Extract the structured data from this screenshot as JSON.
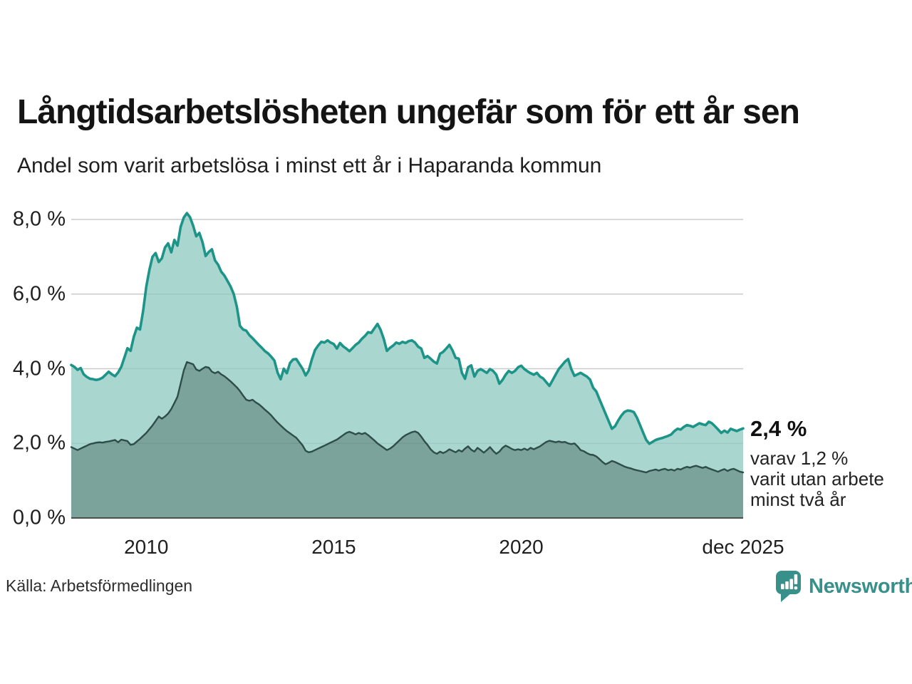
{
  "header": {
    "title": "Långtidsarbetslösheten ungefär som för ett år sen",
    "subtitle": "Andel som varit arbetslösa i minst ett år i Haparanda kommun"
  },
  "annotation": {
    "value_label": "2,4 %",
    "lines": [
      "varav 1,2 %",
      "varit utan arbete",
      "minst två år"
    ]
  },
  "source_label": "Källa: Arbetsförmedlingen",
  "branding": {
    "name": "Newsworthy"
  },
  "colors": {
    "line_total": "#1d9488",
    "fill_total": "#a9d6cf",
    "line_two_years": "#2e4d49",
    "fill_two_years": "#7ba29b",
    "grid": "#d7d7d7",
    "baseline": "#3a3f3e",
    "logo": "#38908a"
  },
  "chart_data": {
    "type": "area",
    "title": "Långtidsarbetslösheten ungefär som för ett år sen",
    "subtitle": "Andel som varit arbetslösa i minst ett år i Haparanda kommun",
    "x_start_year": 2008,
    "x_months_per_step": 1,
    "x_end_label": "dec 2025",
    "ylim": [
      0,
      8
    ],
    "grid": true,
    "legend_position": "none",
    "y_ticks": [
      {
        "value": 8,
        "label": "8,0 %"
      },
      {
        "value": 6,
        "label": "6,0 %"
      },
      {
        "value": 4,
        "label": "4,0 %"
      },
      {
        "value": 2,
        "label": "2,0 %"
      },
      {
        "value": 0,
        "label": "0,0 %"
      }
    ],
    "x_ticks": [
      {
        "year": 2010.0,
        "label": "2010"
      },
      {
        "year": 2015.0,
        "label": "2015"
      },
      {
        "year": 2020.0,
        "label": "2020"
      },
      {
        "year": 2025.917,
        "label": "dec 2025"
      }
    ],
    "series": [
      {
        "name": "arbetslösa minst ett år",
        "end_value": 2.4,
        "values": [
          4.1,
          4.05,
          3.97,
          4.02,
          3.85,
          3.78,
          3.73,
          3.72,
          3.7,
          3.72,
          3.76,
          3.84,
          3.92,
          3.85,
          3.8,
          3.9,
          4.05,
          4.3,
          4.55,
          4.48,
          4.85,
          5.1,
          5.05,
          5.55,
          6.2,
          6.65,
          7.0,
          7.1,
          6.86,
          6.96,
          7.25,
          7.36,
          7.12,
          7.45,
          7.3,
          7.8,
          8.05,
          8.17,
          8.06,
          7.83,
          7.55,
          7.64,
          7.39,
          7.02,
          7.13,
          7.2,
          6.9,
          6.79,
          6.6,
          6.5,
          6.35,
          6.2,
          6.0,
          5.65,
          5.15,
          5.05,
          5.02,
          4.9,
          4.82,
          4.73,
          4.64,
          4.56,
          4.47,
          4.41,
          4.32,
          4.22,
          3.9,
          3.72,
          4.0,
          3.88,
          4.15,
          4.25,
          4.26,
          4.13,
          4.0,
          3.82,
          3.95,
          4.25,
          4.5,
          4.62,
          4.72,
          4.7,
          4.76,
          4.7,
          4.66,
          4.54,
          4.69,
          4.6,
          4.54,
          4.47,
          4.55,
          4.64,
          4.7,
          4.8,
          4.88,
          4.98,
          4.96,
          5.08,
          5.2,
          5.04,
          4.8,
          4.48,
          4.56,
          4.62,
          4.7,
          4.67,
          4.72,
          4.69,
          4.74,
          4.76,
          4.7,
          4.59,
          4.54,
          4.29,
          4.34,
          4.27,
          4.19,
          4.14,
          4.4,
          4.45,
          4.54,
          4.64,
          4.49,
          4.29,
          4.27,
          3.89,
          3.73,
          4.04,
          4.09,
          3.79,
          3.94,
          3.99,
          3.94,
          3.89,
          3.99,
          3.94,
          3.84,
          3.6,
          3.7,
          3.84,
          3.94,
          3.89,
          3.94,
          4.04,
          4.08,
          3.99,
          3.93,
          3.88,
          3.84,
          3.89,
          3.79,
          3.74,
          3.64,
          3.54,
          3.69,
          3.84,
          3.99,
          4.09,
          4.19,
          4.26,
          3.99,
          3.81,
          3.85,
          3.89,
          3.84,
          3.79,
          3.71,
          3.49,
          3.39,
          3.19,
          2.99,
          2.79,
          2.59,
          2.39,
          2.46,
          2.61,
          2.74,
          2.84,
          2.88,
          2.87,
          2.84,
          2.69,
          2.49,
          2.29,
          2.09,
          1.99,
          2.04,
          2.09,
          2.12,
          2.14,
          2.17,
          2.2,
          2.24,
          2.33,
          2.39,
          2.37,
          2.44,
          2.49,
          2.47,
          2.44,
          2.49,
          2.54,
          2.51,
          2.49,
          2.58,
          2.54,
          2.46,
          2.37,
          2.28,
          2.34,
          2.29,
          2.39,
          2.36,
          2.33,
          2.37,
          2.4
        ]
      },
      {
        "name": "utan arbete minst två år",
        "end_value": 1.2,
        "values": [
          1.9,
          1.86,
          1.82,
          1.86,
          1.9,
          1.94,
          1.98,
          2.0,
          2.02,
          2.03,
          2.02,
          2.04,
          2.05,
          2.07,
          2.09,
          2.03,
          2.1,
          2.08,
          2.06,
          1.96,
          1.98,
          2.05,
          2.12,
          2.2,
          2.28,
          2.38,
          2.48,
          2.6,
          2.72,
          2.66,
          2.72,
          2.8,
          2.92,
          3.08,
          3.25,
          3.6,
          3.95,
          4.18,
          4.15,
          4.12,
          3.98,
          3.94,
          4.0,
          4.05,
          4.03,
          3.92,
          3.88,
          3.92,
          3.85,
          3.8,
          3.73,
          3.66,
          3.58,
          3.5,
          3.4,
          3.28,
          3.17,
          3.14,
          3.17,
          3.1,
          3.05,
          2.98,
          2.9,
          2.83,
          2.75,
          2.65,
          2.56,
          2.48,
          2.4,
          2.33,
          2.27,
          2.21,
          2.15,
          2.05,
          1.95,
          1.8,
          1.76,
          1.78,
          1.82,
          1.86,
          1.9,
          1.94,
          1.98,
          2.02,
          2.06,
          2.1,
          2.16,
          2.22,
          2.28,
          2.31,
          2.28,
          2.24,
          2.28,
          2.25,
          2.28,
          2.22,
          2.15,
          2.08,
          2.0,
          1.94,
          1.88,
          1.82,
          1.86,
          1.92,
          2.0,
          2.08,
          2.16,
          2.22,
          2.26,
          2.3,
          2.32,
          2.28,
          2.18,
          2.06,
          1.96,
          1.84,
          1.76,
          1.72,
          1.78,
          1.74,
          1.78,
          1.84,
          1.8,
          1.76,
          1.82,
          1.78,
          1.86,
          1.92,
          1.83,
          1.78,
          1.88,
          1.82,
          1.75,
          1.82,
          1.9,
          1.8,
          1.72,
          1.78,
          1.88,
          1.94,
          1.9,
          1.85,
          1.82,
          1.84,
          1.82,
          1.86,
          1.82,
          1.88,
          1.84,
          1.88,
          1.92,
          1.98,
          2.04,
          2.07,
          2.05,
          2.03,
          2.05,
          2.03,
          2.04,
          2.0,
          1.98,
          2.0,
          1.92,
          1.82,
          1.79,
          1.74,
          1.7,
          1.69,
          1.65,
          1.58,
          1.5,
          1.44,
          1.48,
          1.53,
          1.5,
          1.46,
          1.42,
          1.38,
          1.35,
          1.33,
          1.3,
          1.28,
          1.26,
          1.24,
          1.22,
          1.26,
          1.28,
          1.3,
          1.27,
          1.3,
          1.32,
          1.28,
          1.3,
          1.27,
          1.32,
          1.3,
          1.34,
          1.37,
          1.35,
          1.38,
          1.4,
          1.37,
          1.34,
          1.37,
          1.33,
          1.3,
          1.27,
          1.24,
          1.28,
          1.31,
          1.26,
          1.3,
          1.32,
          1.28,
          1.24,
          1.22
        ]
      }
    ]
  }
}
